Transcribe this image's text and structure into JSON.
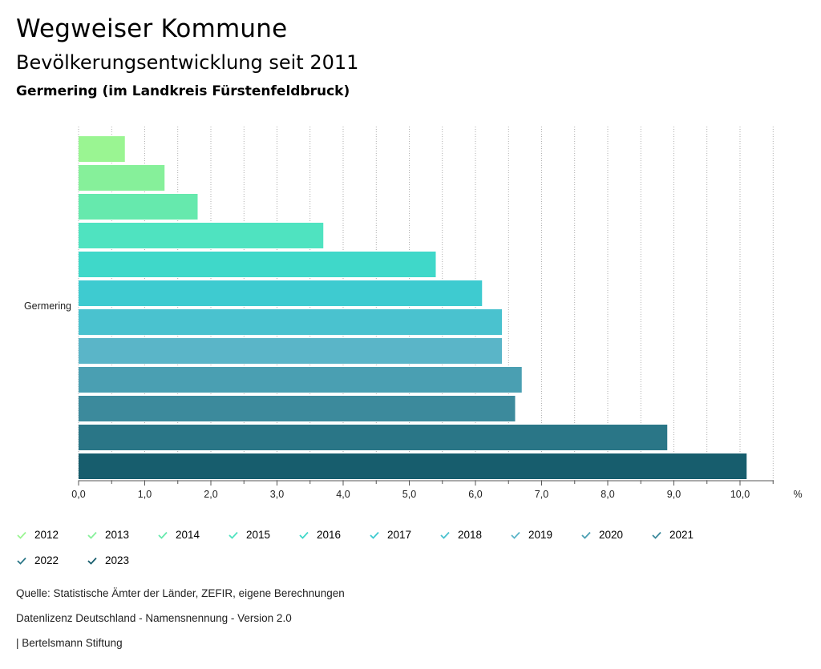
{
  "header": {
    "title": "Wegweiser Kommune",
    "subtitle": "Bevölkerungsentwicklung seit 2011",
    "region": "Germering (im Landkreis Fürstenfeldbruck)"
  },
  "chart_data": {
    "type": "bar",
    "orientation": "horizontal",
    "categories": [
      "Germering"
    ],
    "xlim": [
      0,
      10.5
    ],
    "ticks": [
      0,
      1,
      2,
      3,
      4,
      5,
      6,
      7,
      8,
      9,
      10
    ],
    "tick_labels": [
      "0,0",
      "1,0",
      "2,0",
      "3,0",
      "4,0",
      "5,0",
      "6,0",
      "7,0",
      "8,0",
      "9,0",
      "10,0"
    ],
    "unit": "%",
    "grid": true,
    "legend_position": "bottom",
    "series": [
      {
        "name": "2012",
        "values": [
          0.7
        ],
        "color": "#9af592"
      },
      {
        "name": "2013",
        "values": [
          1.3
        ],
        "color": "#86f09a"
      },
      {
        "name": "2014",
        "values": [
          1.8
        ],
        "color": "#66e9ad"
      },
      {
        "name": "2015",
        "values": [
          3.7
        ],
        "color": "#4fe3c0"
      },
      {
        "name": "2016",
        "values": [
          5.4
        ],
        "color": "#3fd8c9"
      },
      {
        "name": "2017",
        "values": [
          6.1
        ],
        "color": "#3ecbd0"
      },
      {
        "name": "2018",
        "values": [
          6.4
        ],
        "color": "#4ac2cf"
      },
      {
        "name": "2019",
        "values": [
          6.4
        ],
        "color": "#5ab5c8"
      },
      {
        "name": "2020",
        "values": [
          6.7
        ],
        "color": "#4a9fb2"
      },
      {
        "name": "2021",
        "values": [
          6.6
        ],
        "color": "#3c8a9c"
      },
      {
        "name": "2022",
        "values": [
          8.9
        ],
        "color": "#2a7687"
      },
      {
        "name": "2023",
        "values": [
          10.1
        ],
        "color": "#175d6d"
      }
    ]
  },
  "footer": {
    "source": "Quelle: Statistische Ämter der Länder, ZEFIR, eigene Berechnungen",
    "license": "Datenlizenz Deutschland - Namensnennung - Version 2.0",
    "publisher": "| Bertelsmann Stiftung"
  }
}
